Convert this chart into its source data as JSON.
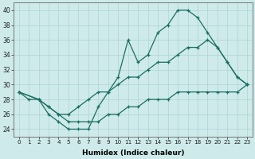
{
  "xlabel": "Humidex (Indice chaleur)",
  "xlim": [
    -0.5,
    23.5
  ],
  "ylim": [
    23,
    41
  ],
  "yticks": [
    24,
    26,
    28,
    30,
    32,
    34,
    36,
    38,
    40
  ],
  "xticks": [
    0,
    1,
    2,
    3,
    4,
    5,
    6,
    7,
    8,
    9,
    10,
    11,
    12,
    13,
    14,
    15,
    16,
    17,
    18,
    19,
    20,
    21,
    22,
    23
  ],
  "bg_color": "#ceeaea",
  "grid_color": "#aed4d4",
  "line_color": "#1a6e62",
  "line1_x": [
    0,
    1,
    2,
    3,
    4,
    5,
    6,
    7,
    8,
    9,
    10,
    11,
    12,
    13,
    14,
    15,
    16,
    17,
    18,
    19,
    20,
    21,
    22,
    23
  ],
  "line1_y": [
    29,
    28,
    28,
    26,
    25,
    24,
    24,
    24,
    27,
    29,
    31,
    36,
    33,
    34,
    37,
    38,
    40,
    40,
    39,
    37,
    35,
    33,
    31,
    30
  ],
  "line2_x": [
    0,
    2,
    3,
    4,
    5,
    6,
    7,
    8,
    9,
    10,
    11,
    12,
    13,
    14,
    15,
    16,
    17,
    18,
    19,
    20,
    21,
    22,
    23
  ],
  "line2_y": [
    29,
    28,
    27,
    26,
    26,
    27,
    28,
    29,
    29,
    30,
    31,
    31,
    32,
    33,
    33,
    34,
    35,
    35,
    36,
    35,
    33,
    31,
    30
  ],
  "line3_x": [
    0,
    2,
    3,
    4,
    5,
    6,
    7,
    8,
    9,
    10,
    11,
    12,
    13,
    14,
    15,
    16,
    17,
    18,
    19,
    20,
    21,
    22,
    23
  ],
  "line3_y": [
    29,
    28,
    27,
    26,
    25,
    25,
    25,
    25,
    26,
    26,
    27,
    27,
    28,
    28,
    28,
    29,
    29,
    29,
    29,
    29,
    29,
    29,
    30
  ]
}
